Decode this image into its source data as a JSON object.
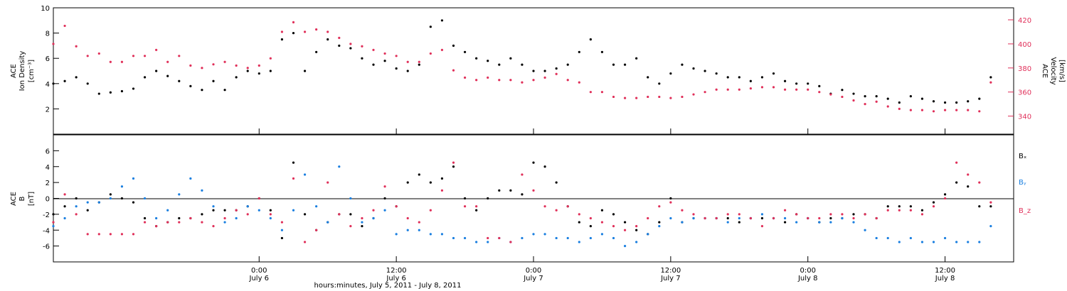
{
  "figure": {
    "x_title": "hours:minutes, July  5, 2011 - July  8, 2011"
  },
  "colors": {
    "black": "#000000",
    "red": "#e0305a",
    "blue": "#1a7fe0",
    "axis": "#000000"
  },
  "chart_data": [
    {
      "type": "scatter",
      "panel": "top",
      "ylabel_lines": [
        "ACE",
        "Ion Density",
        "[cm⁻³]"
      ],
      "ylim": [
        0,
        10
      ],
      "yticks": [
        2,
        4,
        6,
        8,
        10
      ],
      "y2label_lines": [
        "ACE",
        "Velocity",
        "[km/s]"
      ],
      "y2lim": [
        325,
        430
      ],
      "y2ticks": [
        340,
        360,
        380,
        400,
        420
      ],
      "xlim_hours": [
        -18,
        66
      ],
      "xticks": [
        {
          "hours": 0,
          "time": "0:00",
          "date": "July 6"
        },
        {
          "hours": 12,
          "time": "12:00",
          "date": "July 6"
        },
        {
          "hours": 24,
          "time": "0:00",
          "date": "July 7"
        },
        {
          "hours": 36,
          "time": "12:00",
          "date": "July 7"
        },
        {
          "hours": 48,
          "time": "0:00",
          "date": "July 8"
        },
        {
          "hours": 60,
          "time": "12:00",
          "date": "July 8"
        }
      ],
      "series": [
        {
          "name": "Ion Density",
          "axis": "left",
          "color": "#000000",
          "x": [
            -18,
            -17,
            -16,
            -15,
            -14,
            -13,
            -12,
            -11,
            -10,
            -9,
            -8,
            -7,
            -6,
            -5,
            -4,
            -3,
            -2,
            -1,
            0,
            1,
            2,
            3,
            4,
            5,
            6,
            7,
            8,
            9,
            10,
            11,
            12,
            13,
            14,
            15,
            16,
            17,
            18,
            19,
            20,
            21,
            22,
            23,
            24,
            25,
            26,
            27,
            28,
            29,
            30,
            31,
            32,
            33,
            34,
            35,
            36,
            37,
            38,
            39,
            40,
            41,
            42,
            43,
            44,
            45,
            46,
            47,
            48,
            49,
            50,
            51,
            52,
            53,
            54,
            55,
            56,
            57,
            58,
            59,
            60,
            61,
            62,
            63,
            64
          ],
          "y": [
            4.0,
            4.2,
            4.5,
            4.0,
            3.2,
            3.3,
            3.4,
            3.6,
            4.5,
            5.0,
            4.6,
            4.2,
            3.8,
            3.5,
            4.2,
            3.5,
            4.5,
            5.0,
            4.8,
            5.0,
            7.5,
            8.0,
            5.0,
            6.5,
            7.5,
            7.0,
            6.8,
            6.0,
            5.5,
            5.8,
            5.2,
            5.0,
            5.5,
            8.5,
            9.0,
            7.0,
            6.5,
            6.0,
            5.8,
            5.5,
            6.0,
            5.5,
            5.0,
            5.0,
            5.2,
            5.5,
            6.5,
            7.5,
            6.5,
            5.5,
            5.5,
            6.0,
            4.5,
            4.0,
            4.8,
            5.5,
            5.2,
            5.0,
            4.8,
            4.5,
            4.5,
            4.2,
            4.5,
            4.8,
            4.2,
            4.0,
            4.0,
            3.8,
            3.2,
            3.5,
            3.2,
            3.0,
            3.0,
            2.8,
            2.5,
            3.0,
            2.8,
            2.6,
            2.5,
            2.5,
            2.6,
            2.8,
            4.5
          ]
        },
        {
          "name": "Velocity",
          "axis": "right",
          "color": "#e0305a",
          "x": [
            -18,
            -17,
            -16,
            -15,
            -14,
            -13,
            -12,
            -11,
            -10,
            -9,
            -8,
            -7,
            -6,
            -5,
            -4,
            -3,
            -2,
            -1,
            0,
            1,
            2,
            3,
            4,
            5,
            6,
            7,
            8,
            9,
            10,
            11,
            12,
            13,
            14,
            15,
            16,
            17,
            18,
            19,
            20,
            21,
            22,
            23,
            24,
            25,
            26,
            27,
            28,
            29,
            30,
            31,
            32,
            33,
            34,
            35,
            36,
            37,
            38,
            39,
            40,
            41,
            42,
            43,
            44,
            45,
            46,
            47,
            48,
            49,
            50,
            51,
            52,
            53,
            54,
            55,
            56,
            57,
            58,
            59,
            60,
            61,
            62,
            63,
            64
          ],
          "y": [
            400,
            415,
            398,
            390,
            392,
            385,
            385,
            390,
            390,
            395,
            385,
            390,
            382,
            380,
            383,
            385,
            382,
            380,
            382,
            388,
            410,
            418,
            410,
            412,
            410,
            405,
            400,
            398,
            395,
            392,
            390,
            385,
            385,
            392,
            395,
            378,
            372,
            370,
            372,
            370,
            370,
            368,
            370,
            372,
            375,
            370,
            368,
            360,
            360,
            356,
            355,
            355,
            356,
            356,
            355,
            356,
            358,
            360,
            362,
            362,
            362,
            363,
            364,
            364,
            362,
            362,
            362,
            360,
            358,
            356,
            353,
            350,
            352,
            348,
            346,
            345,
            345,
            344,
            345,
            345,
            345,
            344,
            368
          ]
        }
      ]
    },
    {
      "type": "scatter",
      "panel": "bottom",
      "ylabel_lines": [
        "ACE",
        "B",
        "[nT]"
      ],
      "ylim": [
        -8,
        8
      ],
      "yticks": [
        -6,
        -4,
        -2,
        0,
        2,
        4,
        6
      ],
      "legend_position": "right",
      "series": [
        {
          "name": "Bₓ",
          "color": "#000000",
          "x": [
            -18,
            -17,
            -16,
            -15,
            -14,
            -13,
            -12,
            -11,
            -10,
            -9,
            -8,
            -7,
            -6,
            -5,
            -4,
            -3,
            -2,
            -1,
            0,
            1,
            2,
            3,
            4,
            5,
            6,
            7,
            8,
            9,
            10,
            11,
            12,
            13,
            14,
            15,
            16,
            17,
            18,
            19,
            20,
            21,
            22,
            23,
            24,
            25,
            26,
            27,
            28,
            29,
            30,
            31,
            32,
            33,
            34,
            35,
            36,
            37,
            38,
            39,
            40,
            41,
            42,
            43,
            44,
            45,
            46,
            47,
            48,
            49,
            50,
            51,
            52,
            53,
            54,
            55,
            56,
            57,
            58,
            59,
            60,
            61,
            62,
            63,
            64
          ],
          "y": [
            -2.0,
            -1.0,
            0.0,
            -1.5,
            -0.5,
            0.5,
            0.0,
            -0.5,
            -2.5,
            -3.5,
            -3.0,
            -2.5,
            -2.5,
            -2.0,
            -1.5,
            -1.5,
            -1.5,
            -1.0,
            0.0,
            -1.5,
            -5.0,
            4.5,
            -2.0,
            -4.0,
            -3.0,
            -2.0,
            -2.0,
            -3.5,
            -2.5,
            0.0,
            -1.0,
            2.0,
            3.0,
            2.0,
            2.5,
            4.0,
            0.0,
            -1.5,
            0.0,
            1.0,
            1.0,
            0.5,
            4.5,
            4.0,
            2.0,
            -1.0,
            -3.0,
            -3.5,
            -1.5,
            -2.0,
            -3.0,
            -4.0,
            -4.5,
            -3.0,
            0.0,
            -3.0,
            -2.5,
            -2.5,
            -2.5,
            -2.5,
            -3.0,
            -2.5,
            -2.5,
            -2.5,
            -3.0,
            -2.0,
            -2.5,
            -3.0,
            -2.5,
            -2.5,
            -2.0,
            -2.0,
            -2.5,
            -1.0,
            -1.0,
            -1.0,
            -1.5,
            -0.5,
            0.5,
            2.0,
            1.5,
            -1.0,
            -1.0
          ]
        },
        {
          "name": "Bᵧ",
          "color": "#1a7fe0",
          "x": [
            -18,
            -17,
            -16,
            -15,
            -14,
            -13,
            -12,
            -11,
            -10,
            -9,
            -8,
            -7,
            -6,
            -5,
            -4,
            -3,
            -2,
            -1,
            0,
            1,
            2,
            3,
            4,
            5,
            6,
            7,
            8,
            9,
            10,
            11,
            12,
            13,
            14,
            15,
            16,
            17,
            18,
            19,
            20,
            21,
            22,
            23,
            24,
            25,
            26,
            27,
            28,
            29,
            30,
            31,
            32,
            33,
            34,
            35,
            36,
            37,
            38,
            39,
            40,
            41,
            42,
            43,
            44,
            45,
            46,
            47,
            48,
            49,
            50,
            51,
            52,
            53,
            54,
            55,
            56,
            57,
            58,
            59,
            60,
            61,
            62,
            63,
            64
          ],
          "y": [
            -3.5,
            -2.5,
            -1.0,
            -0.5,
            -0.5,
            0.0,
            1.5,
            2.5,
            0.0,
            -2.5,
            -1.5,
            0.5,
            2.5,
            1.0,
            -1.0,
            -3.0,
            -2.5,
            -1.0,
            -1.5,
            -2.5,
            -4.0,
            -1.5,
            3.0,
            -1.0,
            -3.0,
            4.0,
            0.0,
            -3.0,
            -2.5,
            -1.5,
            -4.5,
            -4.0,
            -4.0,
            -4.5,
            -4.5,
            -5.0,
            -5.0,
            -5.5,
            -5.5,
            -5.0,
            -5.5,
            -5.0,
            -4.5,
            -4.5,
            -5.0,
            -5.0,
            -5.5,
            -5.0,
            -4.5,
            -5.0,
            -6.0,
            -5.5,
            -4.5,
            -3.5,
            -2.5,
            -3.0,
            -2.5,
            -2.5,
            -2.5,
            -3.0,
            -2.5,
            -2.5,
            -2.0,
            -2.5,
            -2.5,
            -3.0,
            -2.5,
            -3.0,
            -3.0,
            -2.5,
            -3.0,
            -4.0,
            -5.0,
            -5.0,
            -5.5,
            -5.0,
            -5.5,
            -5.5,
            -5.0,
            -5.5,
            -5.5,
            -5.5,
            -3.5
          ]
        },
        {
          "name": "B_z",
          "color": "#e0305a",
          "x": [
            -18,
            -17,
            -16,
            -15,
            -14,
            -13,
            -12,
            -11,
            -10,
            -9,
            -8,
            -7,
            -6,
            -5,
            -4,
            -3,
            -2,
            -1,
            0,
            1,
            2,
            3,
            4,
            5,
            6,
            7,
            8,
            9,
            10,
            11,
            12,
            13,
            14,
            15,
            16,
            17,
            18,
            19,
            20,
            21,
            22,
            23,
            24,
            25,
            26,
            27,
            28,
            29,
            30,
            31,
            32,
            33,
            34,
            35,
            36,
            37,
            38,
            39,
            40,
            41,
            42,
            43,
            44,
            45,
            46,
            47,
            48,
            49,
            50,
            51,
            52,
            53,
            54,
            55,
            56,
            57,
            58,
            59,
            60,
            61,
            62,
            63,
            64
          ],
          "y": [
            -3.0,
            0.5,
            -2.0,
            -4.5,
            -4.5,
            -4.5,
            -4.5,
            -4.5,
            -3.0,
            -3.5,
            -3.0,
            -3.0,
            -2.5,
            -3.0,
            -3.5,
            -2.5,
            -1.5,
            -2.0,
            0.0,
            -2.0,
            -3.0,
            2.5,
            -5.5,
            -4.0,
            2.0,
            -2.0,
            -3.5,
            -2.5,
            -1.5,
            1.5,
            -1.0,
            -2.5,
            -3.0,
            -1.5,
            1.0,
            4.5,
            -1.0,
            -1.0,
            -5.0,
            -5.0,
            -5.5,
            3.0,
            1.0,
            -1.0,
            -1.5,
            -1.0,
            -2.0,
            -2.5,
            -3.0,
            -3.5,
            -4.0,
            -3.5,
            -2.5,
            -1.0,
            -0.5,
            -1.5,
            -2.0,
            -2.5,
            -2.5,
            -2.0,
            -2.0,
            -2.5,
            -3.5,
            -2.5,
            -1.5,
            -2.0,
            -2.5,
            -2.5,
            -2.0,
            -2.0,
            -2.5,
            -2.0,
            -2.5,
            -1.5,
            -1.5,
            -1.5,
            -2.0,
            -1.0,
            0.0,
            4.5,
            3.0,
            2.0,
            -0.5
          ]
        }
      ]
    }
  ]
}
